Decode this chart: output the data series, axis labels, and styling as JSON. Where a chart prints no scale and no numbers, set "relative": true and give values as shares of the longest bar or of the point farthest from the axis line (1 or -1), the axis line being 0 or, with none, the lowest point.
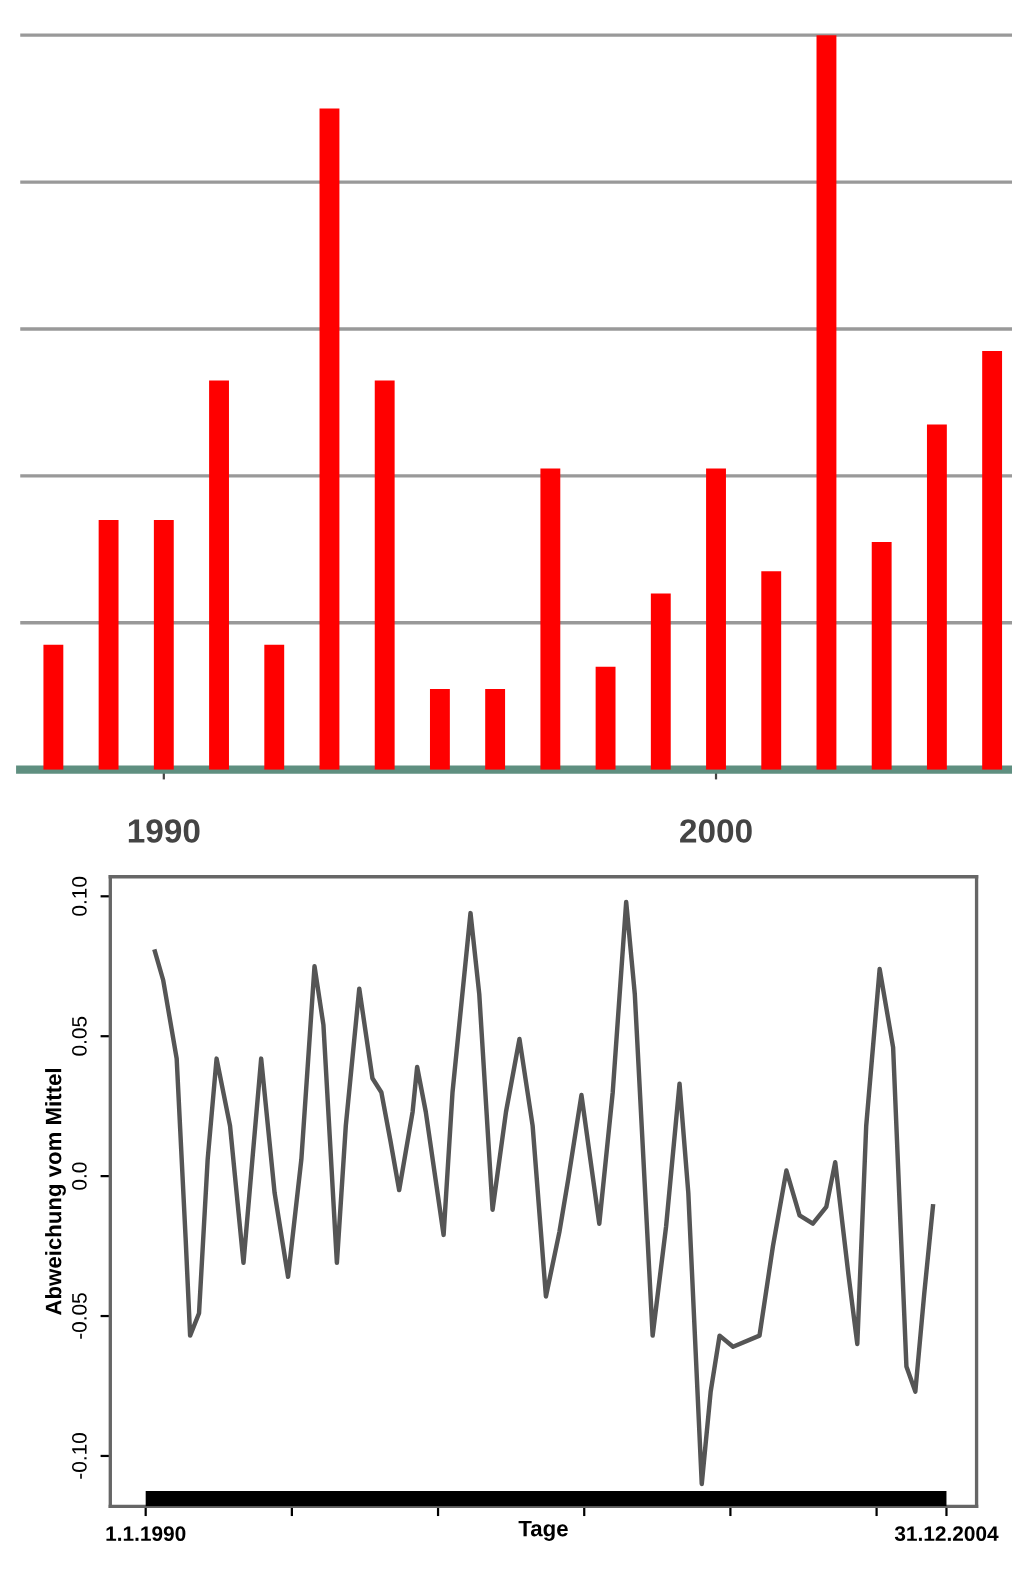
{
  "chart_data": [
    {
      "type": "bar",
      "relative": true,
      "x": [
        1988,
        1989,
        1990,
        1991,
        1992,
        1993,
        1994,
        1995,
        1996,
        1997,
        1998,
        1999,
        2000,
        2001,
        2002,
        2003,
        2004,
        2005
      ],
      "values": [
        0.17,
        0.34,
        0.34,
        0.53,
        0.17,
        0.9,
        0.53,
        0.11,
        0.11,
        0.41,
        0.14,
        0.24,
        0.41,
        0.27,
        1,
        0.31,
        0.47,
        0.57
      ],
      "color": "#ff0000",
      "xlim": [
        1987.4,
        2005.36
      ],
      "xticks": [
        1990,
        2000
      ],
      "grid": "y"
    },
    {
      "type": "line",
      "xlabel": "Tage",
      "ylabel": "Abweichung vom Mittel",
      "series": [
        {
          "color": "#555555",
          "x": [
            "1990-03",
            "1990-05",
            "1990-08",
            "1990-10",
            "1990-11",
            "1991-01",
            "1991-03",
            "1991-05",
            "1991-08",
            "1991-11",
            "1992-01",
            "1992-03",
            "1992-06",
            "1992-09",
            "1992-12",
            "1993-03",
            "1993-05",
            "1993-08",
            "1993-10",
            "1994-01",
            "1994-04",
            "1994-06",
            "1994-08",
            "1994-10",
            "1995-01",
            "1995-02",
            "1995-04",
            "1995-08",
            "1995-10",
            "1996-02",
            "1996-04",
            "1996-07",
            "1996-10",
            "1997-01",
            "1997-04",
            "1997-07",
            "1997-10",
            "1997-12",
            "1998-03",
            "1998-05",
            "1998-07",
            "1998-10",
            "1999-01",
            "1999-03",
            "1999-07",
            "1999-10",
            "2000-01",
            "2000-03",
            "2000-06",
            "2000-08",
            "2000-10",
            "2001-01",
            "2001-07",
            "2001-10",
            "2002-01",
            "2002-04",
            "2002-07",
            "2002-10",
            "2002-12",
            "2003-03",
            "2003-05",
            "2003-07",
            "2003-10",
            "2004-01",
            "2004-04",
            "2004-06",
            "2004-08",
            "2004-10"
          ],
          "values": [
            0.081,
            0.07,
            0.042,
            -0.022,
            -0.057,
            -0.049,
            0.006,
            0.042,
            0.018,
            -0.031,
            0.006,
            0.042,
            -0.006,
            -0.036,
            0.006,
            0.075,
            0.054,
            -0.031,
            0.018,
            0.067,
            0.035,
            0.03,
            0.013,
            -0.005,
            0.023,
            0.039,
            0.023,
            -0.021,
            0.03,
            0.094,
            0.065,
            -0.012,
            0.023,
            0.049,
            0.018,
            -0.043,
            -0.02,
            -0.001,
            0.029,
            0.006,
            -0.017,
            0.03,
            0.098,
            0.065,
            -0.057,
            -0.018,
            0.033,
            -0.006,
            -0.11,
            -0.077,
            -0.057,
            -0.061,
            -0.057,
            -0.025,
            0.002,
            -0.014,
            -0.017,
            -0.011,
            0.005,
            -0.035,
            -0.06,
            0.018,
            0.074,
            0.046,
            -0.068,
            -0.077,
            -0.042,
            -0.01
          ]
        },
        {
          "type": "line",
          "color": "#000000",
          "x": [
            "1990-01-01",
            "2004-12-31"
          ],
          "values": [
            -0.1153,
            -0.1153
          ]
        }
      ],
      "xlim": [
        "1989-05-04",
        "2005-07-25"
      ],
      "ylim": [
        -0.118,
        0.107
      ],
      "xticks": [
        {
          "value": "1990-01-01",
          "label": "1.1.1990"
        },
        {
          "value": "1992-09-27",
          "label": null
        },
        {
          "value": "1995-06-24",
          "label": null
        },
        {
          "value": "1998-03-20",
          "label": null
        },
        {
          "value": "2000-12-14",
          "label": null
        },
        {
          "value": "2003-09-10",
          "label": null
        },
        {
          "value": "2004-12-31",
          "label": "31.12.2004"
        }
      ],
      "yticks": [
        {
          "value": -0.1,
          "label": "-0.10"
        },
        -0.05,
        {
          "value": 0,
          "label": "0.0"
        },
        0.05,
        {
          "value": 0.1,
          "label": "0.10"
        }
      ],
      "grid": false
    }
  ]
}
